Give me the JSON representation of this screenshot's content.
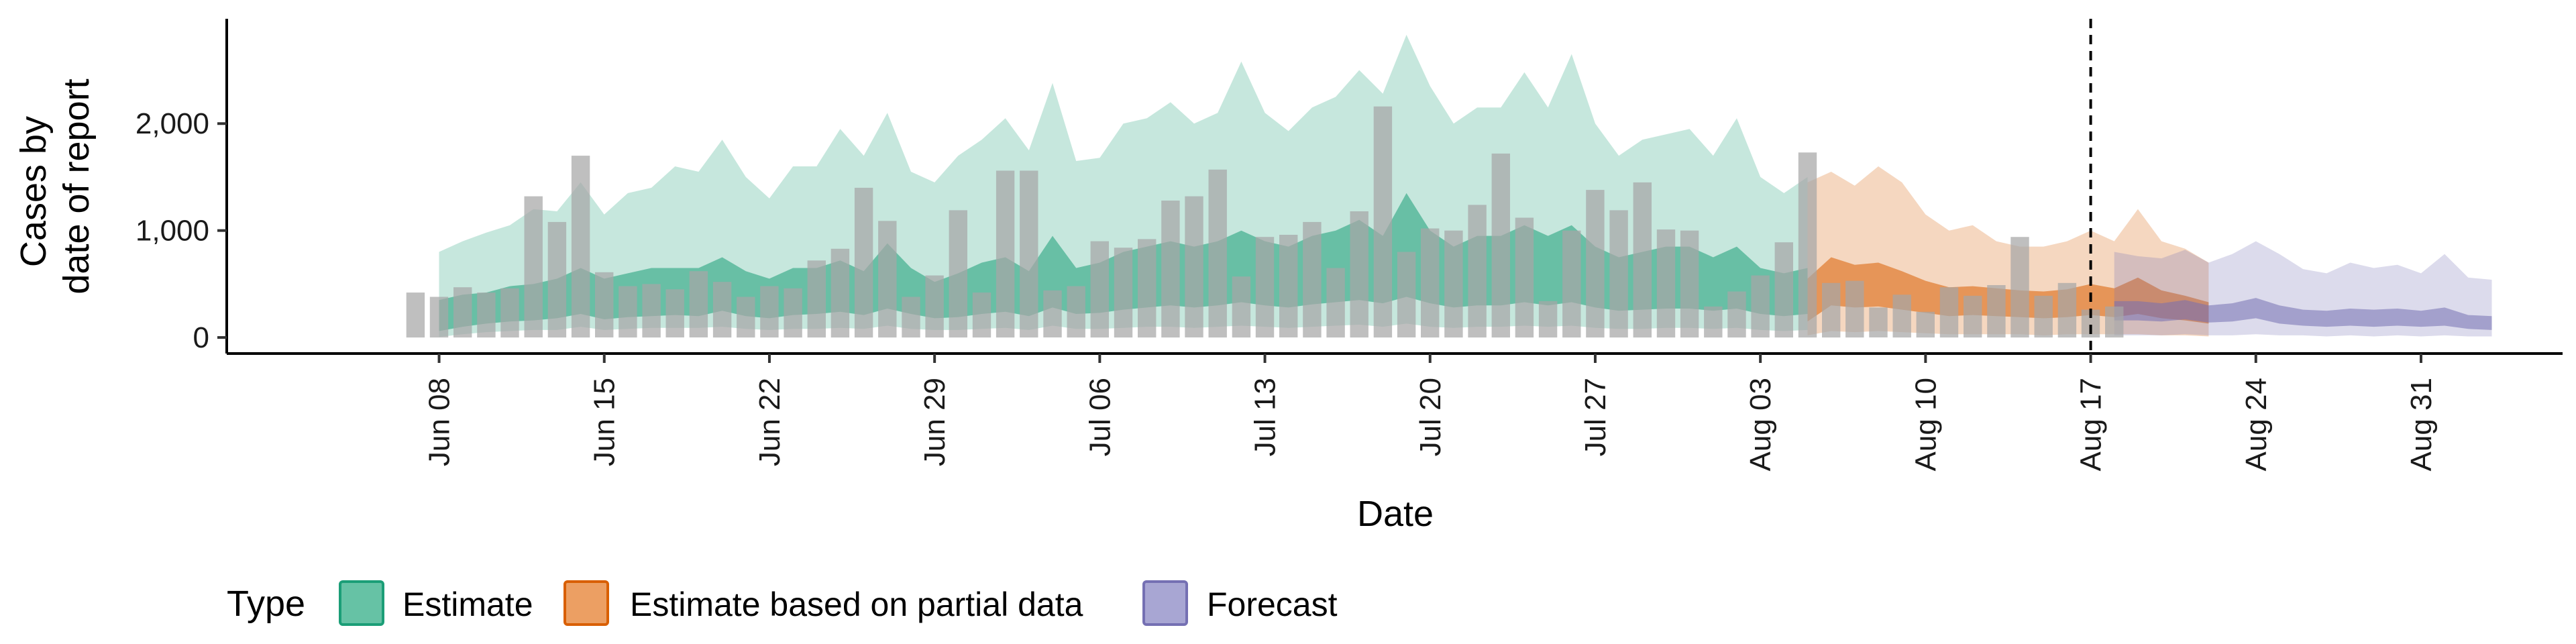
{
  "chart_data": {
    "type": "area",
    "xlabel": "Date",
    "ylabel_lines": [
      "Cases by",
      "date of report"
    ],
    "x_tick_labels": [
      "Jun 08",
      "Jun 15",
      "Jun 22",
      "Jun 29",
      "Jul 06",
      "Jul 13",
      "Jul 20",
      "Jul 27",
      "Aug 03",
      "Aug 10",
      "Aug 17",
      "Aug 24",
      "Aug 31"
    ],
    "y_tick_labels": [
      "0",
      "1,000",
      "2,000"
    ],
    "y_ticks": [
      0,
      1000,
      2000
    ],
    "ylim": [
      -150,
      2980
    ],
    "x_range": [
      "2020-05-30",
      "2020-09-06"
    ],
    "forecast_date": "2020-08-17",
    "legend": {
      "title": "Type",
      "position": "bottom",
      "items": [
        {
          "label": "Estimate",
          "fill": "#66c2a5",
          "stroke": "#1b9e77"
        },
        {
          "label": "Estimate based on partial data",
          "fill": "#ec9f63",
          "stroke": "#d95f02"
        },
        {
          "label": "Forecast",
          "fill": "#a8a6d3",
          "stroke": "#7570b3"
        }
      ]
    },
    "colors": {
      "Estimate": "#1b9e77",
      "Estimate based on partial data": "#d95f02",
      "Forecast": "#7570b3",
      "bars": "#a6a6a6",
      "forecast_line": "#000000"
    },
    "reported_cases": {
      "start": "2020-06-07",
      "values": [
        420,
        380,
        470,
        420,
        460,
        1320,
        1080,
        1700,
        610,
        480,
        500,
        450,
        620,
        520,
        380,
        480,
        460,
        720,
        830,
        1400,
        1090,
        380,
        580,
        1190,
        420,
        1560,
        1560,
        440,
        480,
        900,
        840,
        920,
        1280,
        1320,
        1570,
        570,
        940,
        960,
        1080,
        650,
        1180,
        2160,
        800,
        1020,
        1000,
        1240,
        1720,
        1120,
        340,
        1000,
        1380,
        1190,
        1450,
        1010,
        1000,
        290,
        430,
        580,
        890,
        1730,
        510,
        530,
        280,
        400,
        240,
        470,
        390,
        490,
        940,
        390,
        510,
        260,
        290
      ]
    },
    "series": [
      {
        "name": "Estimate",
        "start": "2020-06-08",
        "upper90": [
          800,
          900,
          980,
          1050,
          1200,
          1180,
          1450,
          1150,
          1350,
          1400,
          1600,
          1550,
          1850,
          1500,
          1300,
          1600,
          1600,
          1950,
          1700,
          2100,
          1550,
          1450,
          1700,
          1850,
          2050,
          1750,
          2380,
          1650,
          1680,
          2000,
          2050,
          2200,
          2000,
          2100,
          2580,
          2100,
          1930,
          2150,
          2250,
          2500,
          2280,
          2830,
          2350,
          2000,
          2150,
          2150,
          2480,
          2150,
          2650,
          2000,
          1700,
          1850,
          1900,
          1950,
          1700,
          2050,
          1500,
          1350,
          1500
        ],
        "upper50": [
          350,
          400,
          420,
          480,
          500,
          550,
          650,
          550,
          600,
          650,
          650,
          650,
          750,
          620,
          550,
          650,
          650,
          720,
          620,
          880,
          650,
          520,
          600,
          700,
          750,
          620,
          950,
          650,
          700,
          800,
          850,
          900,
          850,
          900,
          1000,
          900,
          850,
          950,
          1000,
          1100,
          950,
          1350,
          1000,
          850,
          950,
          950,
          1050,
          950,
          1050,
          850,
          750,
          800,
          850,
          850,
          750,
          850,
          650,
          600,
          650
        ],
        "median": [
          150,
          180,
          190,
          220,
          230,
          260,
          350,
          260,
          300,
          320,
          330,
          320,
          380,
          310,
          280,
          320,
          330,
          360,
          310,
          440,
          330,
          260,
          300,
          350,
          370,
          310,
          500,
          340,
          360,
          400,
          430,
          450,
          420,
          450,
          500,
          450,
          420,
          470,
          500,
          550,
          480,
          690,
          500,
          430,
          470,
          470,
          530,
          480,
          530,
          430,
          380,
          400,
          420,
          420,
          380,
          420,
          330,
          300,
          330
        ],
        "lower50": [
          60,
          100,
          130,
          150,
          160,
          180,
          220,
          170,
          190,
          200,
          210,
          200,
          250,
          200,
          180,
          210,
          220,
          240,
          210,
          270,
          220,
          180,
          190,
          220,
          240,
          200,
          280,
          220,
          230,
          260,
          280,
          300,
          280,
          300,
          330,
          300,
          280,
          310,
          330,
          350,
          320,
          380,
          320,
          280,
          300,
          300,
          330,
          300,
          330,
          280,
          250,
          260,
          270,
          270,
          250,
          270,
          220,
          200,
          220
        ],
        "lower90": [
          5,
          30,
          50,
          60,
          70,
          70,
          100,
          70,
          80,
          90,
          90,
          90,
          100,
          80,
          70,
          80,
          80,
          90,
          80,
          110,
          80,
          70,
          70,
          80,
          90,
          70,
          110,
          80,
          80,
          90,
          100,
          100,
          90,
          100,
          110,
          100,
          90,
          100,
          110,
          120,
          100,
          130,
          100,
          90,
          100,
          100,
          110,
          100,
          110,
          90,
          80,
          80,
          90,
          90,
          80,
          90,
          70,
          60,
          70
        ]
      },
      {
        "name": "Estimate based on partial data",
        "start": "2020-08-05",
        "upper90": [
          1450,
          1550,
          1420,
          1600,
          1450,
          1150,
          1000,
          1050,
          900,
          850,
          850,
          900,
          1000,
          900,
          1200,
          900,
          830,
          700
        ],
        "upper50": [
          550,
          750,
          680,
          700,
          620,
          530,
          470,
          480,
          460,
          440,
          430,
          450,
          500,
          460,
          560,
          440,
          390,
          330
        ],
        "median": [
          320,
          420,
          380,
          400,
          350,
          300,
          270,
          280,
          260,
          250,
          240,
          250,
          280,
          260,
          300,
          240,
          210,
          180
        ],
        "lower50": [
          150,
          300,
          280,
          290,
          260,
          230,
          200,
          210,
          200,
          190,
          180,
          190,
          210,
          190,
          220,
          180,
          160,
          130
        ],
        "lower90": [
          20,
          60,
          50,
          60,
          50,
          40,
          30,
          30,
          30,
          30,
          20,
          30,
          30,
          30,
          30,
          20,
          20,
          10
        ]
      },
      {
        "name": "Forecast",
        "start": "2020-08-18",
        "upper90": [
          800,
          760,
          740,
          820,
          700,
          780,
          900,
          780,
          640,
          600,
          700,
          650,
          680,
          600,
          780,
          560,
          540
        ],
        "upper50": [
          340,
          340,
          320,
          350,
          300,
          320,
          370,
          300,
          260,
          250,
          270,
          260,
          270,
          250,
          280,
          210,
          200
        ],
        "median": [
          250,
          240,
          230,
          250,
          210,
          230,
          260,
          200,
          170,
          160,
          180,
          170,
          180,
          160,
          190,
          130,
          120
        ],
        "lower50": [
          160,
          160,
          150,
          170,
          140,
          150,
          180,
          130,
          110,
          100,
          110,
          100,
          110,
          100,
          110,
          80,
          70
        ],
        "lower90": [
          20,
          20,
          20,
          30,
          20,
          20,
          30,
          20,
          20,
          10,
          20,
          10,
          20,
          10,
          20,
          10,
          10
        ]
      }
    ]
  }
}
